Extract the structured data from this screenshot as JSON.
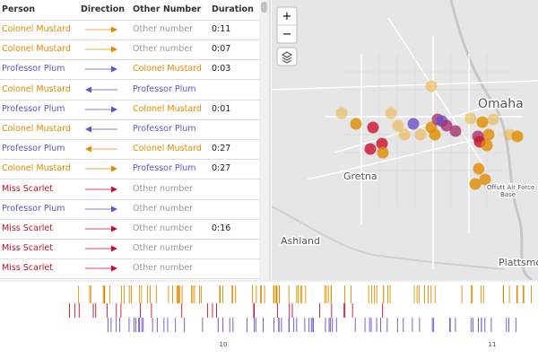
{
  "table": {
    "headers": [
      "Person",
      "Direction",
      "Other Number",
      "Duration"
    ],
    "colors": {
      "Colonel Mustard": "#e08c00",
      "Professor Plum": "#6a4fc9",
      "Miss Scarlet": "#c8102e",
      "Other number": "#999999"
    },
    "rows": [
      {
        "person": "Colonel Mustard",
        "direction": "out",
        "other": "Other number",
        "duration": "0:11"
      },
      {
        "person": "Colonel Mustard",
        "direction": "out",
        "other": "Other number",
        "duration": "0:07"
      },
      {
        "person": "Professor Plum",
        "direction": "out",
        "other": "Colonel Mustard",
        "duration": "0:03"
      },
      {
        "person": "Colonel Mustard",
        "direction": "in",
        "other": "Professor Plum"
      },
      {
        "person": "Professor Plum",
        "direction": "out",
        "other": "Colonel Mustard",
        "duration": "0:01"
      },
      {
        "person": "Colonel Mustard",
        "direction": "in",
        "other": "Professor Plum"
      },
      {
        "person": "Professor Plum",
        "direction": "in",
        "other": "Colonel Mustard",
        "duration": "0:27"
      },
      {
        "person": "Colonel Mustard",
        "direction": "out",
        "other": "Professor Plum",
        "duration": "0:27"
      },
      {
        "person": "Miss Scarlet",
        "direction": "out",
        "other": "Other number"
      },
      {
        "person": "Professor Plum",
        "direction": "out",
        "other": "Other number"
      },
      {
        "person": "Miss Scarlet",
        "direction": "out",
        "other": "Other number",
        "duration": "0:16"
      },
      {
        "person": "Miss Scarlet",
        "direction": "out",
        "other": "Other number"
      },
      {
        "person": "Miss Scarlet",
        "direction": "out",
        "other": "Other number"
      }
    ]
  },
  "map": {
    "controls": {
      "zoom_in": "+",
      "zoom_out": "−"
    },
    "places": [
      "Omaha",
      "Gretna",
      "Offutt Air Force",
      "Base",
      "Ashland",
      "Plattsmouth"
    ]
  },
  "timeline": {
    "labels": [
      "10",
      "11"
    ]
  }
}
